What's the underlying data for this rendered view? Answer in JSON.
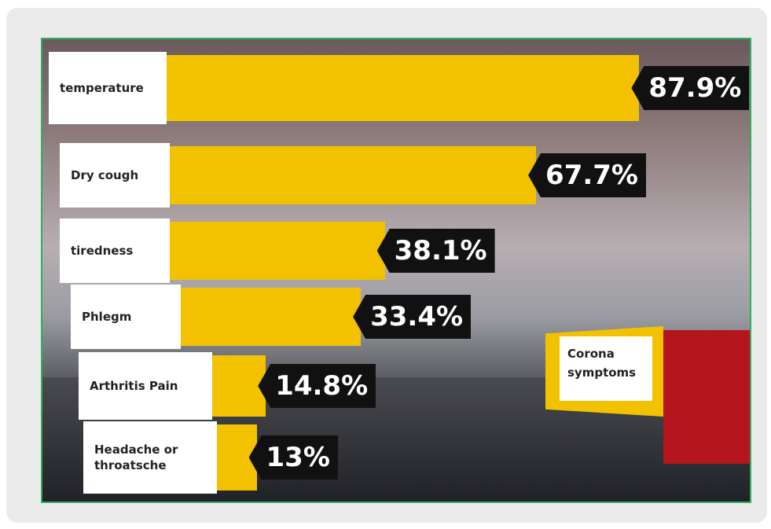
{
  "chart_data": {
    "type": "bar",
    "orientation": "horizontal",
    "title": "Corona symptoms",
    "categories": [
      "temperature",
      "Dry cough",
      "tiredness",
      "Phlegm",
      "Arthritis Pain",
      "Headache or throatsche"
    ],
    "values": [
      87.9,
      67.7,
      38.1,
      33.4,
      14.8,
      13
    ],
    "value_labels": [
      "87.9%",
      "67.7%",
      "38.1%",
      "33.4%",
      "14.8%",
      "13%"
    ],
    "color": "#f2c200"
  }
}
